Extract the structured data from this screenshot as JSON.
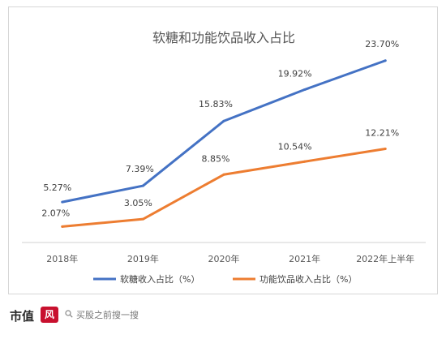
{
  "chart_data": {
    "type": "line",
    "title": "软糖和功能饮品收入占比",
    "categories": [
      "2018年",
      "2019年",
      "2020年",
      "2021年",
      "2022年上半年"
    ],
    "ylim": [
      0,
      26
    ],
    "grid": false,
    "legend": "bottom",
    "series": [
      {
        "name": "软糖收入占比（%）",
        "color": "#4472C4",
        "values": [
          5.27,
          7.39,
          15.83,
          19.92,
          23.7
        ],
        "labels": [
          "5.27%",
          "7.39%",
          "15.83%",
          "19.92%",
          "23.70%"
        ]
      },
      {
        "name": "功能饮品收入占比（%）",
        "color": "#ED7D31",
        "values": [
          2.07,
          3.05,
          8.85,
          10.54,
          12.21
        ],
        "labels": [
          "2.07%",
          "3.05%",
          "8.85%",
          "10.54%",
          "12.21%"
        ]
      }
    ]
  },
  "footer": {
    "brand": "市值",
    "brand_mark": "风云",
    "search_text": "买股之前搜一搜"
  }
}
